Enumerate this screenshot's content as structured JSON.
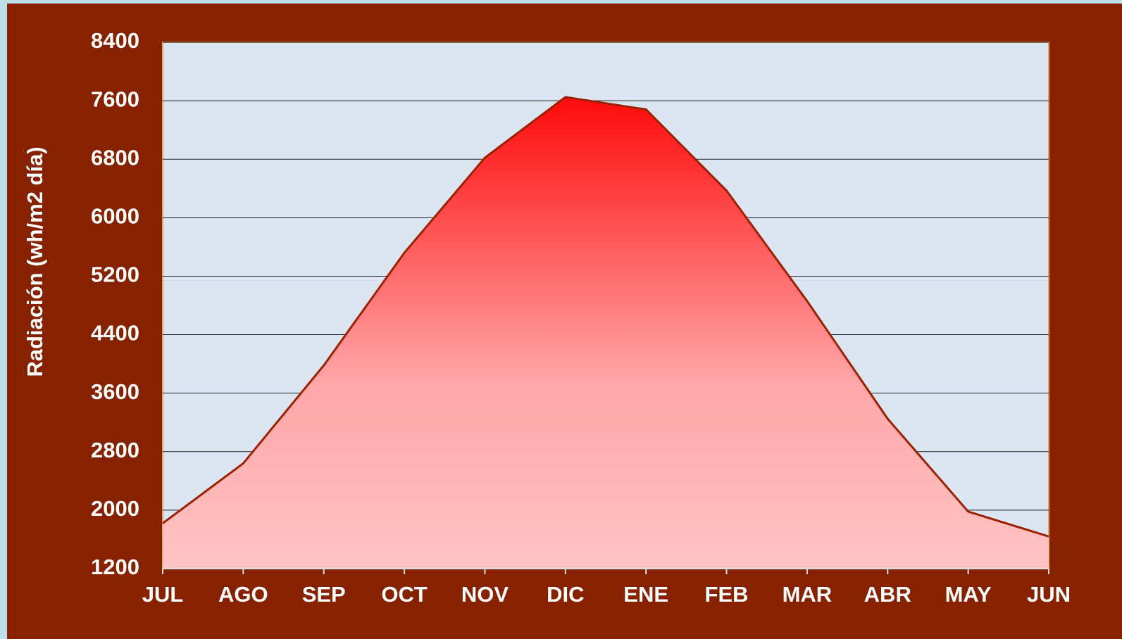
{
  "chart_data": {
    "type": "area",
    "y_axis_label": "Radiación (wh/m2 día)",
    "categories": [
      "JUL",
      "AGO",
      "SEP",
      "OCT",
      "NOV",
      "DIC",
      "ENE",
      "FEB",
      "MAR",
      "ABR",
      "MAY",
      "JUN"
    ],
    "values": [
      1820,
      2640,
      3980,
      5520,
      6820,
      7650,
      7480,
      6370,
      4860,
      3250,
      1980,
      1640
    ],
    "color": "#ff1010",
    "line_color": "#9a2200",
    "ylim": [
      1200,
      8400
    ],
    "yticks": [
      1200,
      2000,
      2800,
      3600,
      4400,
      5200,
      6000,
      6800,
      7600,
      8400
    ],
    "grid": true
  }
}
